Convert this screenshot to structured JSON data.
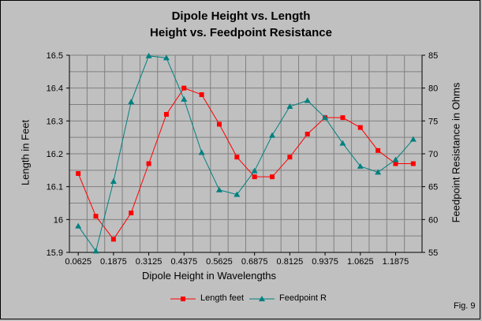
{
  "figure_label": "Fig. 9",
  "colors": {
    "background": "#c0c0c0",
    "grid": "#808080",
    "length_series": "#ff0000",
    "feedpoint_series": "#008080"
  },
  "chart_data": {
    "type": "line",
    "title": "Dipole Height vs. Length",
    "subtitle": "Height vs. Feedpoint Resistance",
    "xlabel": "Dipole Height in Wavelengths",
    "ylabel": "Length in Feet",
    "y2label": "Feedpoint Resistance in Ohms",
    "x": [
      0.0625,
      0.125,
      0.1875,
      0.25,
      0.3125,
      0.375,
      0.4375,
      0.5,
      0.5625,
      0.625,
      0.6875,
      0.75,
      0.8125,
      0.875,
      0.9375,
      1.0,
      1.0625,
      1.125,
      1.1875,
      1.25
    ],
    "x_tick_labels": [
      "0.0625",
      "0.1875",
      "0.3125",
      "0.4375",
      "0.5625",
      "0.6875",
      "0.8125",
      "0.9375",
      "1.0625",
      "1.1875"
    ],
    "y_tick_labels": [
      "15.9",
      "16",
      "16.1",
      "16.2",
      "16.3",
      "16.4",
      "16.5"
    ],
    "y2_tick_labels": [
      "55",
      "60",
      "65",
      "70",
      "75",
      "80",
      "85"
    ],
    "ylim": [
      15.9,
      16.5
    ],
    "y2lim": [
      55,
      85
    ],
    "grid": true,
    "legend_position": "bottom",
    "series": [
      {
        "name": "Length feet",
        "axis": "left",
        "marker": "square",
        "values": [
          16.14,
          16.01,
          15.94,
          16.02,
          16.17,
          16.32,
          16.4,
          16.38,
          16.29,
          16.19,
          16.13,
          16.13,
          16.19,
          16.26,
          16.31,
          16.31,
          16.28,
          16.21,
          16.17,
          16.17
        ]
      },
      {
        "name": "Feedpoint R",
        "axis": "right",
        "marker": "triangle",
        "values": [
          59.0,
          55.2,
          65.8,
          77.9,
          84.9,
          84.6,
          78.3,
          70.2,
          64.5,
          63.8,
          67.4,
          72.8,
          77.2,
          78.1,
          75.5,
          71.6,
          68.1,
          67.2,
          69.1,
          72.2
        ]
      }
    ]
  }
}
